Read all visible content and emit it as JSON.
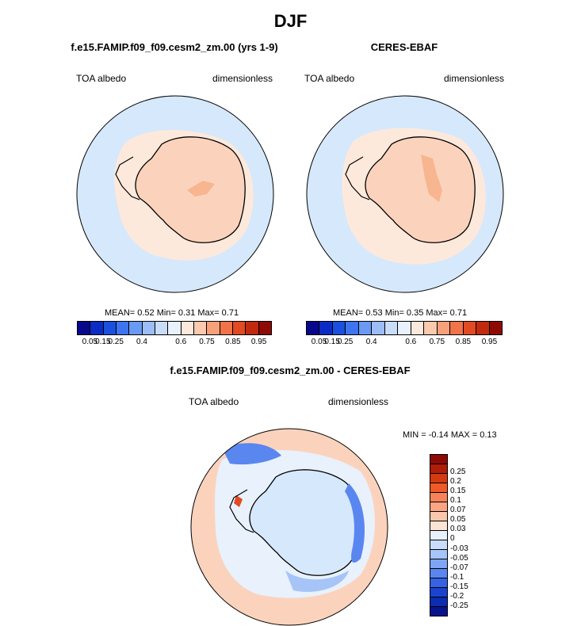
{
  "title": "DJF",
  "panels": [
    {
      "title": "f.e15.FAMIP.f09_f09.cesm2_zm.00 (yrs 1-9)",
      "left_label": "TOA albedo",
      "right_label": "dimensionless",
      "stats": "MEAN=   0.52  Min=   0.31  Max=   0.71"
    },
    {
      "title": "CERES-EBAF",
      "left_label": "TOA albedo",
      "right_label": "dimensionless",
      "stats": "MEAN=   0.53  Min=   0.35  Max=   0.71"
    },
    {
      "title": "f.e15.FAMIP.f09_f09.cesm2_zm.00 - CERES-EBAF",
      "left_label": "TOA albedo",
      "right_label": "dimensionless",
      "stats": "MIN =  -0.14 MAX =   0.13"
    }
  ],
  "colorbar_abs": {
    "colors": [
      "#08088c",
      "#0b2bc5",
      "#1a4fe0",
      "#3e74f0",
      "#6b9af5",
      "#9dbdf8",
      "#c9dcfa",
      "#e8f1fc",
      "#fde8dc",
      "#fbc9ae",
      "#f7a07a",
      "#f0734a",
      "#e24a22",
      "#c22a0e",
      "#8e0a05"
    ],
    "labels": [
      "0.05",
      "0.15",
      "0.25",
      "0.4",
      "0.6",
      "0.75",
      "0.85",
      "0.95"
    ]
  },
  "colorbar_diff": {
    "colors": [
      "#8e0a05",
      "#b01d08",
      "#d33a10",
      "#ee5a28",
      "#f7825a",
      "#fba582",
      "#fbc7ab",
      "#fde5d6",
      "#e8f1fc",
      "#c9dcfa",
      "#a6c4f8",
      "#7fa6f5",
      "#5a86ef",
      "#3563e4",
      "#1a44cf",
      "#0c2db0",
      "#07148c"
    ],
    "labels": [
      "0.25",
      "0.2",
      "0.15",
      "0.1",
      "0.07",
      "0.05",
      "0.03",
      "0",
      "-0.03",
      "-0.05",
      "-0.07",
      "-0.1",
      "-0.15",
      "-0.2",
      "-0.25"
    ]
  },
  "map_colors": {
    "ocean": "#d6e8fb",
    "ice": "#fbd3bd",
    "ice_strong": "#f7b590",
    "pale": "#fde9dc",
    "diff_neutral": "#e8f1fc",
    "diff_pos": "#fbd3bd",
    "diff_neg": "#5a86ef",
    "diff_neg_light": "#a6c4f8",
    "diff_pos_strong": "#e24a22"
  }
}
